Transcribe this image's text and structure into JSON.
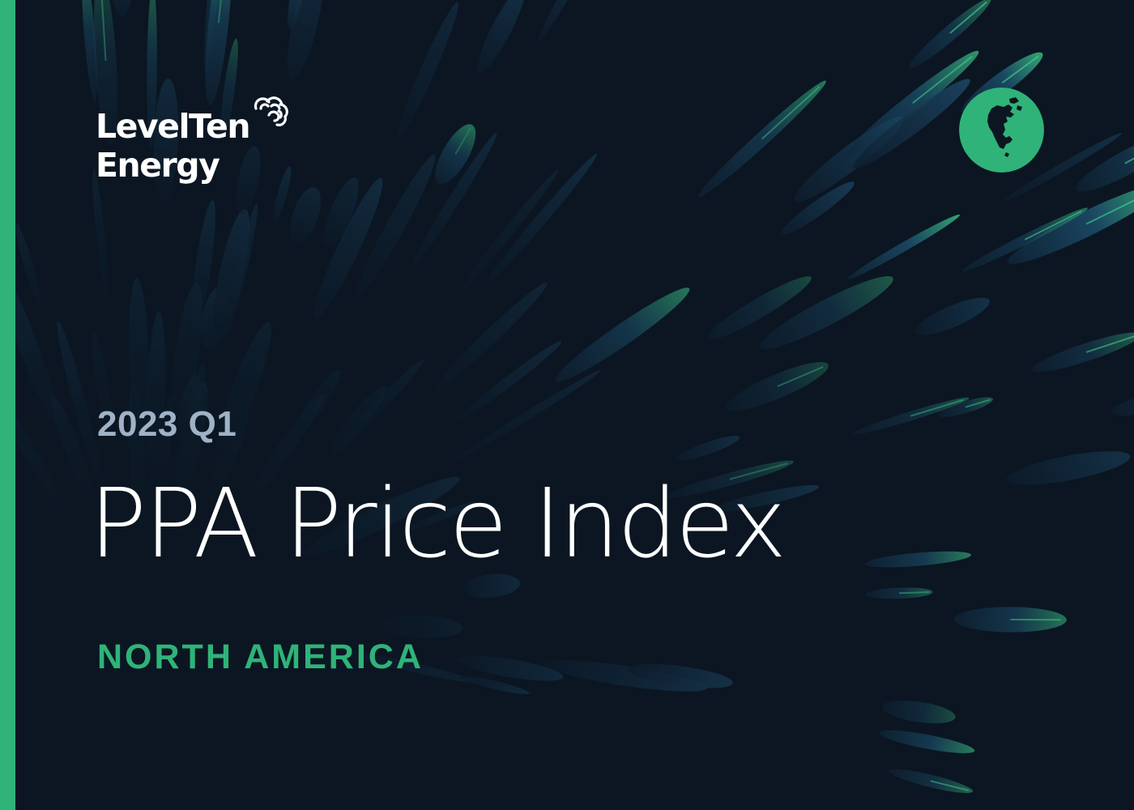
{
  "brand": {
    "line1": "LevelTen",
    "line2": "Energy",
    "logo_icon": "cloud-swirl-icon"
  },
  "badge": {
    "icon": "north-america-globe-icon"
  },
  "report": {
    "period": "2023 Q1",
    "title": "PPA Price Index",
    "region": "NORTH AMERICA"
  },
  "colors": {
    "background": "#0b1622",
    "accent_green": "#2fb378",
    "period_text": "#9fb2c6",
    "title_text": "#ffffff",
    "feather_blue": "#1d4f73",
    "feather_green": "#3fcf8a"
  }
}
